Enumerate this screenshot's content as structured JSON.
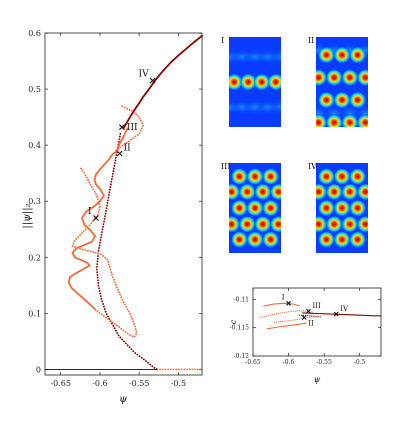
{
  "colors": {
    "stable_branch": "#8b0000",
    "solution_branch": "#f26a3a",
    "marker": "#111111",
    "axis": "#222222"
  },
  "chart_data": [
    {
      "type": "line",
      "xlabel": "ψ",
      "ylabel": "||ψ||₂",
      "xlim": [
        -0.67,
        -0.47
      ],
      "ylim": [
        -0.01,
        0.6
      ],
      "xticks": [
        "-0.65",
        "-0.6",
        "-0.55",
        "-0.5"
      ],
      "xtick_values": [
        -0.65,
        -0.6,
        -0.55,
        -0.5
      ],
      "yticks": [
        "0",
        "0.1",
        "0.2",
        "0.3",
        "0.4",
        "0.5",
        "0.6"
      ],
      "ytick_values": [
        0,
        0.1,
        0.2,
        0.3,
        0.4,
        0.5,
        0.6
      ],
      "series": [
        {
          "style": "solid",
          "color": "#8b0000",
          "x": [
            -0.57,
            -0.565,
            -0.56,
            -0.555,
            -0.55,
            -0.545,
            -0.54,
            -0.535,
            -0.53,
            -0.52,
            -0.51,
            -0.5,
            -0.49,
            -0.48,
            -0.47
          ],
          "y": [
            0.43,
            0.442,
            0.454,
            0.465,
            0.475,
            0.486,
            0.495,
            0.505,
            0.515,
            0.532,
            0.547,
            0.56,
            0.572,
            0.584,
            0.595
          ]
        },
        {
          "style": "dotted",
          "color": "#8b0000",
          "x": [
            -0.574,
            -0.578,
            -0.582,
            -0.586,
            -0.59,
            -0.594,
            -0.598,
            -0.602,
            -0.604,
            -0.602,
            -0.598,
            -0.592,
            -0.584,
            -0.576,
            -0.566,
            -0.556,
            -0.546,
            -0.537,
            -0.531,
            -0.527
          ],
          "y": [
            0.42,
            0.39,
            0.36,
            0.33,
            0.3,
            0.27,
            0.24,
            0.21,
            0.18,
            0.15,
            0.125,
            0.1,
            0.08,
            0.06,
            0.045,
            0.03,
            0.02,
            0.01,
            0.003,
            0.0
          ]
        },
        {
          "style": "dotted",
          "color": "#f26a3a",
          "x": [
            -0.527,
            -0.515,
            -0.5,
            -0.49,
            -0.48,
            -0.47
          ],
          "y": [
            0.0,
            0.0,
            0.0,
            0.0,
            0.0,
            0.0
          ]
        },
        {
          "style": "solid",
          "color": "#111111",
          "x": [
            -0.67,
            -0.527
          ],
          "y": [
            0.0,
            0.0
          ]
        },
        {
          "style": "solid",
          "color": "#f26a3a",
          "x": [
            -0.565,
            -0.57,
            -0.575,
            -0.578,
            -0.58,
            -0.583,
            -0.59,
            -0.598,
            -0.605,
            -0.607,
            -0.605,
            -0.6,
            -0.595,
            -0.6,
            -0.608,
            -0.617,
            -0.623,
            -0.62,
            -0.612,
            -0.606,
            -0.61,
            -0.62,
            -0.63,
            -0.635,
            -0.632,
            -0.624,
            -0.616,
            -0.613,
            -0.62,
            -0.63,
            -0.638,
            -0.64,
            -0.636,
            -0.628,
            -0.62,
            -0.612,
            -0.606
          ],
          "y": [
            0.43,
            0.415,
            0.402,
            0.392,
            0.387,
            0.385,
            0.372,
            0.36,
            0.348,
            0.338,
            0.33,
            0.322,
            0.31,
            0.3,
            0.29,
            0.282,
            0.27,
            0.258,
            0.248,
            0.238,
            0.228,
            0.222,
            0.216,
            0.208,
            0.2,
            0.195,
            0.19,
            0.185,
            0.18,
            0.172,
            0.165,
            0.155,
            0.145,
            0.135,
            0.125,
            0.115,
            0.107
          ]
        },
        {
          "style": "dotted",
          "color": "#f26a3a",
          "x": [
            -0.606,
            -0.6,
            -0.59,
            -0.58,
            -0.572,
            -0.566,
            -0.56,
            -0.556,
            -0.553,
            -0.556,
            -0.562,
            -0.57,
            -0.578,
            -0.585,
            -0.59,
            -0.598,
            -0.61,
            -0.625,
            -0.635,
            -0.632,
            -0.625,
            -0.618,
            -0.61,
            -0.603,
            -0.6,
            -0.604,
            -0.612,
            -0.62,
            -0.625
          ],
          "y": [
            0.107,
            0.1,
            0.09,
            0.08,
            0.072,
            0.065,
            0.06,
            0.058,
            0.065,
            0.08,
            0.1,
            0.12,
            0.145,
            0.17,
            0.195,
            0.205,
            0.21,
            0.215,
            0.22,
            0.23,
            0.24,
            0.25,
            0.262,
            0.275,
            0.29,
            0.31,
            0.33,
            0.35,
            0.36
          ]
        },
        {
          "style": "dotted",
          "color": "#f26a3a",
          "x": [
            -0.58,
            -0.57,
            -0.56,
            -0.55,
            -0.545,
            -0.55,
            -0.558,
            -0.566,
            -0.572
          ],
          "y": [
            0.39,
            0.4,
            0.41,
            0.42,
            0.435,
            0.45,
            0.46,
            0.465,
            0.47
          ]
        }
      ],
      "markers": [
        {
          "label": "I",
          "x": -0.605,
          "y": 0.27
        },
        {
          "label": "II",
          "x": -0.575,
          "y": 0.385
        },
        {
          "label": "III",
          "x": -0.572,
          "y": 0.432
        },
        {
          "label": "IV",
          "x": -0.533,
          "y": 0.515
        }
      ]
    },
    {
      "type": "line",
      "xlabel": "ψ",
      "ylabel": "c",
      "xlim": [
        -0.65,
        -0.47
      ],
      "ylim": [
        -0.12,
        -0.108
      ],
      "xticks": [
        "-0.65",
        "-0.6",
        "-0.55",
        "-0.5"
      ],
      "xtick_values": [
        -0.65,
        -0.6,
        -0.55,
        -0.5
      ],
      "yticks": [
        "-0.11",
        "-0.115",
        "-0.12"
      ],
      "ytick_values": [
        -0.11,
        -0.115,
        -0.12
      ],
      "series": [
        {
          "style": "solid",
          "color": "#8b0000",
          "x": [
            -0.58,
            -0.56,
            -0.54,
            -0.52,
            -0.5,
            -0.48,
            -0.47
          ],
          "y": [
            -0.1124,
            -0.1125,
            -0.1126,
            -0.1127,
            -0.1128,
            -0.1129,
            -0.1129
          ]
        },
        {
          "style": "solid",
          "color": "#f26a3a",
          "x": [
            -0.635,
            -0.62,
            -0.605,
            -0.595,
            -0.585
          ],
          "y": [
            -0.1112,
            -0.1108,
            -0.1107,
            -0.1108,
            -0.1111
          ]
        },
        {
          "style": "solid",
          "color": "#f26a3a",
          "x": [
            -0.63,
            -0.61,
            -0.59,
            -0.575
          ],
          "y": [
            -0.1152,
            -0.1148,
            -0.1145,
            -0.1142
          ]
        },
        {
          "style": "dotted",
          "color": "#f26a3a",
          "x": [
            -0.64,
            -0.62,
            -0.6,
            -0.585,
            -0.575,
            -0.565
          ],
          "y": [
            -0.1132,
            -0.1126,
            -0.1122,
            -0.112,
            -0.1121,
            -0.1123
          ]
        },
        {
          "style": "dotted",
          "color": "#f26a3a",
          "x": [
            -0.62,
            -0.6,
            -0.58,
            -0.56
          ],
          "y": [
            -0.114,
            -0.1138,
            -0.1134,
            -0.113
          ]
        },
        {
          "style": "dotted",
          "color": "#8b0000",
          "x": [
            -0.585,
            -0.57,
            -0.555
          ],
          "y": [
            -0.1128,
            -0.1129,
            -0.1131
          ]
        }
      ],
      "markers": [
        {
          "label": "I",
          "x": -0.6,
          "y": -0.1107
        },
        {
          "label": "II",
          "x": -0.578,
          "y": -0.1132
        },
        {
          "label": "III",
          "x": -0.572,
          "y": -0.1121
        },
        {
          "label": "IV",
          "x": -0.533,
          "y": -0.1126
        }
      ]
    }
  ],
  "panels": [
    {
      "label": "I",
      "rows": [
        0.5
      ],
      "cols": [
        0.1,
        0.37,
        0.63,
        0.9
      ],
      "offset_rows": []
    },
    {
      "label": "II",
      "rows": [
        0.2,
        0.7
      ],
      "cols": [
        0.2,
        0.5,
        0.8
      ],
      "offset_rows": [
        0.45,
        0.95
      ],
      "offset_cols": [
        0.05,
        0.35,
        0.65,
        0.95
      ]
    },
    {
      "label": "III",
      "rows": [
        0.15,
        0.5,
        0.85
      ],
      "cols": [
        0.2,
        0.5,
        0.8
      ],
      "offset_rows": [
        0.32,
        0.68
      ],
      "offset_cols": [
        0.05,
        0.35,
        0.65,
        0.95
      ]
    },
    {
      "label": "IV",
      "rows": [
        0.15,
        0.5,
        0.85
      ],
      "cols": [
        0.2,
        0.5,
        0.8
      ],
      "offset_rows": [
        0.32,
        0.68
      ],
      "offset_cols": [
        0.05,
        0.35,
        0.65,
        0.95
      ]
    }
  ]
}
